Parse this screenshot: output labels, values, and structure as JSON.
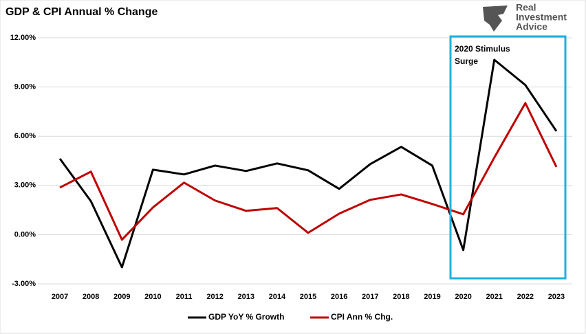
{
  "chart_data": {
    "type": "line",
    "title": "GDP & CPI Annual % Change",
    "logo": [
      "Real",
      "Investment",
      "Advice"
    ],
    "annotation": [
      "2020 Stimulus",
      "Surge"
    ],
    "categories": [
      "2007",
      "2008",
      "2009",
      "2010",
      "2011",
      "2012",
      "2013",
      "2014",
      "2015",
      "2016",
      "2017",
      "2018",
      "2019",
      "2020",
      "2021",
      "2022",
      "2023"
    ],
    "series": [
      {
        "name": "GDP YoY % Growth",
        "color": "#000000",
        "values": [
          4.63,
          2.04,
          -1.99,
          3.96,
          3.67,
          4.21,
          3.88,
          4.34,
          3.92,
          2.79,
          4.3,
          5.35,
          4.21,
          -0.94,
          10.66,
          9.12,
          6.31
        ]
      },
      {
        "name": "CPI Ann % Chg.",
        "color": "#c00000",
        "values": [
          2.87,
          3.84,
          -0.31,
          1.66,
          3.17,
          2.08,
          1.45,
          1.62,
          0.11,
          1.28,
          2.12,
          2.45,
          1.87,
          1.24,
          4.7,
          8.02,
          4.13
        ]
      }
    ],
    "ylim": [
      -3,
      12
    ],
    "yticks": [
      {
        "value": -3,
        "label": "-3.00%"
      },
      {
        "value": 0,
        "label": "0.00%"
      },
      {
        "value": 3,
        "label": "3.00%"
      },
      {
        "value": 6,
        "label": "6.00%"
      },
      {
        "value": 9,
        "label": "9.00%"
      },
      {
        "value": 12,
        "label": "12.00%"
      }
    ],
    "grid": true,
    "legend": "bottom"
  }
}
